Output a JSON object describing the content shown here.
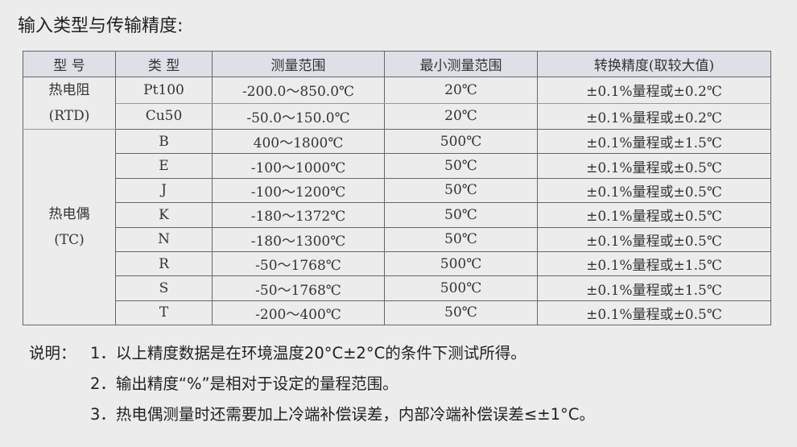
{
  "title": "输入类型与传输精度:",
  "table": {
    "headers": [
      "型 号",
      "类 型",
      "测量范围",
      "最小测量范围",
      "转换精度(取较大值)"
    ],
    "groups": [
      {
        "model": "热电阻",
        "model_code": "(RTD)",
        "rows": [
          {
            "type": "Pt100",
            "range": "-200.0～850.0℃",
            "min_range": "20℃",
            "accuracy": "±0.1%量程或±0.2℃"
          },
          {
            "type": "Cu50",
            "range": "-50.0～150.0℃",
            "min_range": "20℃",
            "accuracy": "±0.1%量程或±0.2℃"
          }
        ]
      },
      {
        "model": "热电偶",
        "model_code": "(TC)",
        "rows": [
          {
            "type": "B",
            "range": "400～1800℃",
            "min_range": "500℃",
            "accuracy": "±0.1%量程或±1.5℃"
          },
          {
            "type": "E",
            "range": "-100～1000℃",
            "min_range": "50℃",
            "accuracy": "±0.1%量程或±0.5℃"
          },
          {
            "type": "J",
            "range": "-100～1200℃",
            "min_range": "50℃",
            "accuracy": "±0.1%量程或±0.5℃"
          },
          {
            "type": "K",
            "range": "-180～1372℃",
            "min_range": "50℃",
            "accuracy": "±0.1%量程或±0.5℃"
          },
          {
            "type": "N",
            "range": "-180～1300℃",
            "min_range": "50℃",
            "accuracy": "±0.1%量程或±0.5℃"
          },
          {
            "type": "R",
            "range": "-50～1768℃",
            "min_range": "500℃",
            "accuracy": "±0.1%量程或±1.5℃"
          },
          {
            "type": "S",
            "range": "-50～1768℃",
            "min_range": "500℃",
            "accuracy": "±0.1%量程或±1.5℃"
          },
          {
            "type": "T",
            "range": "-200～400℃",
            "min_range": "50℃",
            "accuracy": "±0.1%量程或±0.5℃"
          }
        ]
      }
    ]
  },
  "notes": {
    "label": "说明：",
    "items": [
      "1．以上精度数据是在环境温度20°C±2°C的条件下测试所得。",
      "2．输出精度“%”是相对于设定的量程范围。",
      "3．热电偶测量时还需要加上冷端补偿误差，内部冷端补偿误差≤±1°C。"
    ]
  }
}
